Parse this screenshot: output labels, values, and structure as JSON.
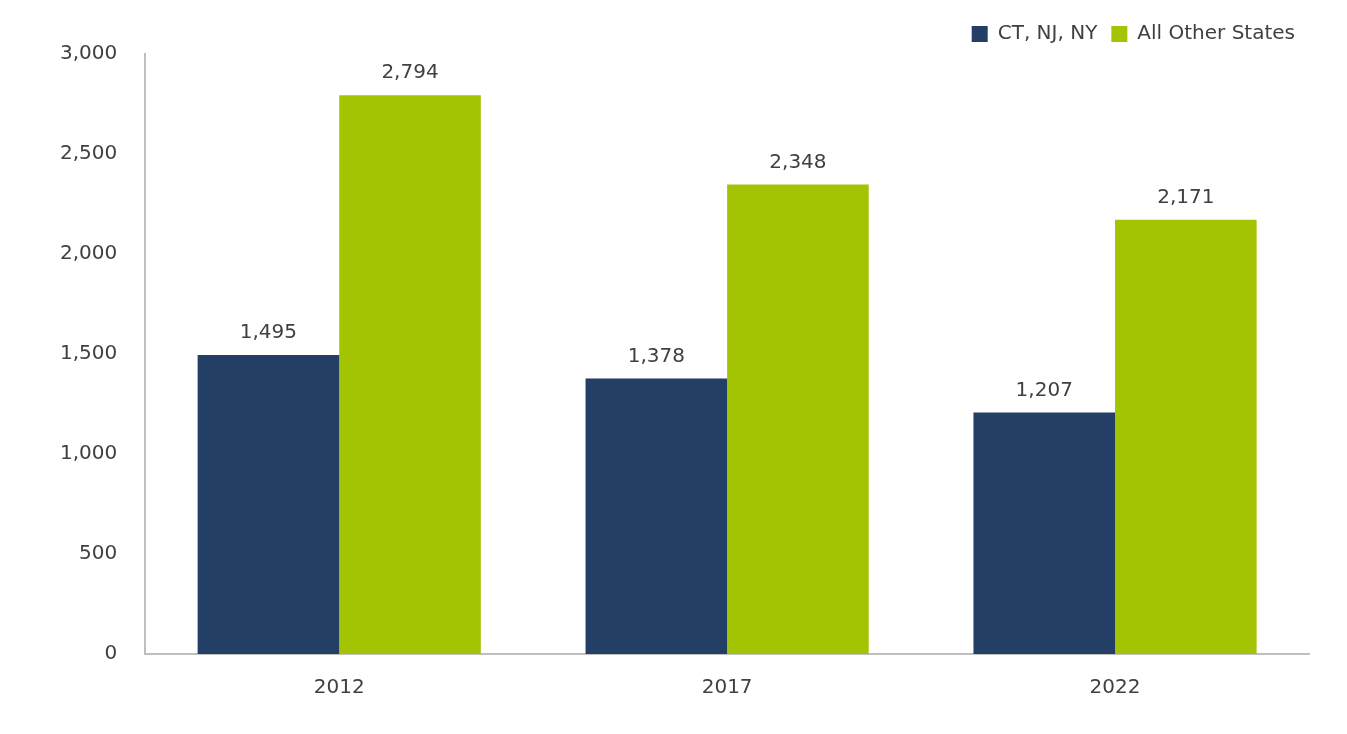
{
  "chart_data": {
    "type": "bar",
    "categories": [
      "2012",
      "2017",
      "2022"
    ],
    "series": [
      {
        "name": "CT, NJ, NY",
        "color": "#243f66",
        "values": [
          1495,
          1378,
          1207
        ],
        "value_labels": [
          "1,495",
          "1,378",
          "1,207"
        ]
      },
      {
        "name": "All Other States",
        "color": "#a2c403",
        "values": [
          2794,
          2348,
          2171
        ],
        "value_labels": [
          "2,794",
          "2,348",
          "2,171"
        ]
      }
    ],
    "ylim": [
      0,
      3000
    ],
    "yticks": [
      0,
      500,
      {
        "value": 1000,
        "label": "1,000"
      },
      {
        "value": 1500,
        "label": "1,500"
      },
      {
        "value": 2000,
        "label": "2,000"
      },
      {
        "value": 2500,
        "label": "2,500"
      },
      {
        "value": 3000,
        "label": "3,000"
      }
    ],
    "grid": false,
    "legend": "upper right",
    "data_labels": true
  }
}
